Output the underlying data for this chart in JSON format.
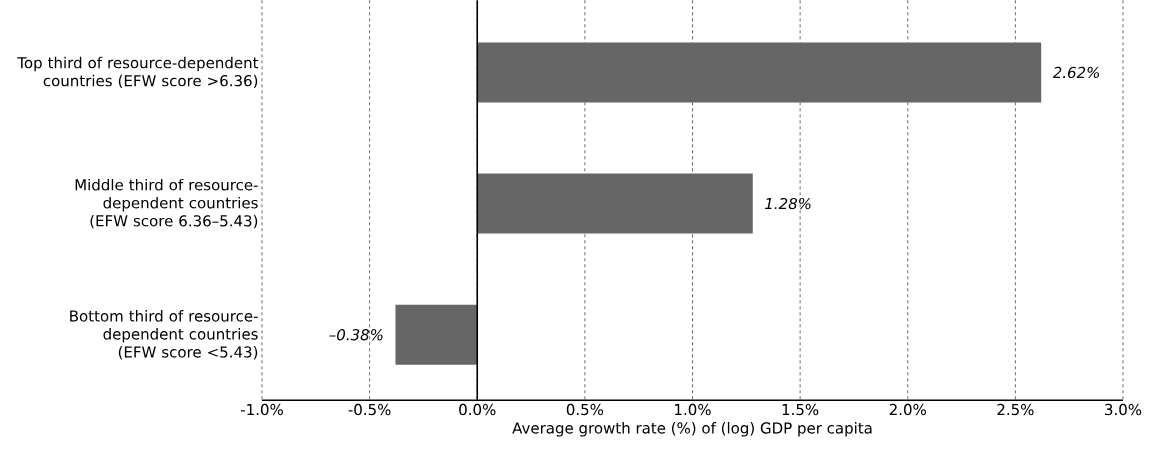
{
  "chart_data": {
    "type": "bar",
    "orientation": "horizontal",
    "categories": [
      "Top third of resource-dependent countries (EFW score >6.36)",
      "Middle third of resource-dependent countries (EFW score 6.36–5.43)",
      "Bottom third of resource-dependent countries (EFW score <5.43)"
    ],
    "values": [
      2.62,
      1.28,
      -0.38
    ],
    "value_labels": [
      "2.62%",
      "1.28%",
      "–0.38%"
    ],
    "color": "#666666",
    "xlabel": "Average growth rate (%) of (log) GDP per capita",
    "xlim": [
      -1.0,
      3.0
    ],
    "xticks": [
      {
        "value": -1.0,
        "label": "-1.0%"
      },
      {
        "value": -0.5,
        "label": "-0.5%"
      },
      {
        "value": 0.0,
        "label": "0.0%"
      },
      {
        "value": 0.5,
        "label": "0.5%"
      },
      {
        "value": 1.0,
        "label": "1.0%"
      },
      {
        "value": 1.5,
        "label": "1.5%"
      },
      {
        "value": 2.0,
        "label": "2.0%"
      },
      {
        "value": 2.5,
        "label": "2.5%"
      },
      {
        "value": 3.0,
        "label": "3.0%"
      }
    ],
    "grid": "x"
  }
}
